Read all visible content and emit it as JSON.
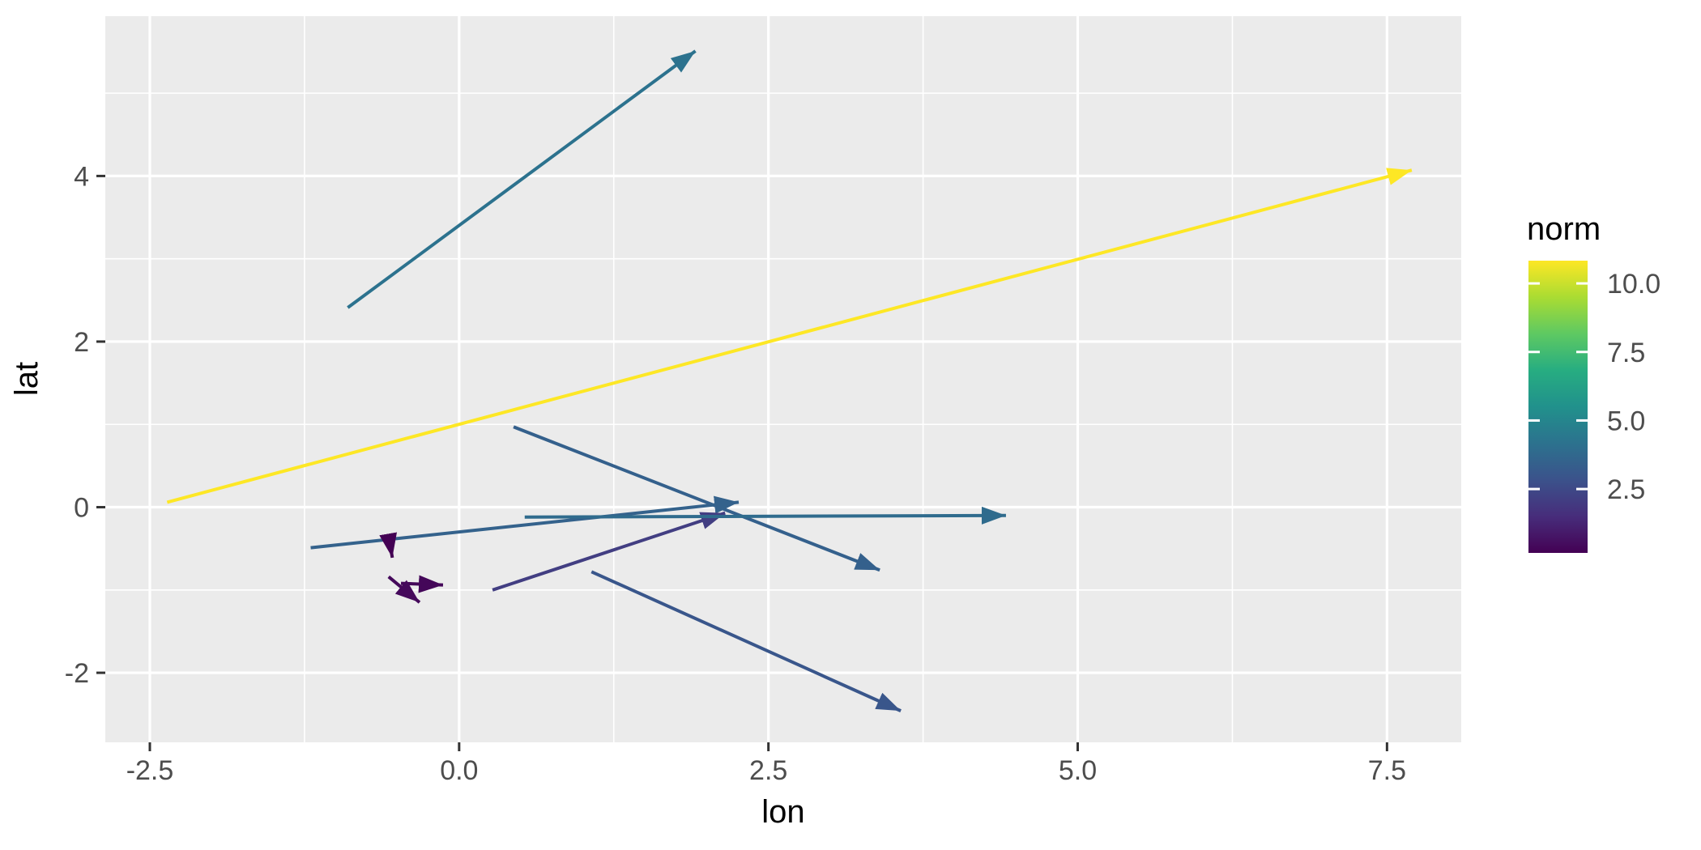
{
  "chart_data": {
    "type": "scatter",
    "subtype": "vector-field-arrows (ggplot2 geom_segment, viridis colour scale)",
    "title": "",
    "xlabel": "lon",
    "ylabel": "lat",
    "xlim": [
      -2.86,
      8.1
    ],
    "ylim": [
      -2.84,
      5.93
    ],
    "grid": "on",
    "panel_background": "#ebebeb",
    "gridline_color": "#ffffff",
    "tick_color": "#333333",
    "tick_label_color": "#4d4d4d",
    "x_major_ticks": [
      -2.5,
      0.0,
      2.5,
      5.0,
      7.5
    ],
    "x_tick_labels": [
      "-2.5",
      "0.0",
      "2.5",
      "5.0",
      "7.5"
    ],
    "x_minor_ticks": [
      -1.25,
      1.25,
      3.75,
      6.25
    ],
    "y_major_ticks": [
      -2,
      0,
      2,
      4
    ],
    "y_tick_labels": [
      "-2",
      "0",
      "2",
      "4"
    ],
    "y_minor_ticks": [
      -1,
      1,
      3,
      5
    ],
    "segments": [
      {
        "x": -0.9,
        "y": 2.41,
        "xend": 1.91,
        "yend": 5.51,
        "norm": 4.18
      },
      {
        "x": -2.36,
        "y": 0.06,
        "xend": 7.7,
        "yend": 4.07,
        "norm": 10.83
      },
      {
        "x": 0.44,
        "y": 0.97,
        "xend": 3.4,
        "yend": -0.76,
        "norm": 3.43
      },
      {
        "x": -1.2,
        "y": -0.49,
        "xend": 2.26,
        "yend": 0.06,
        "norm": 3.5
      },
      {
        "x": 0.27,
        "y": -1.0,
        "xend": 2.15,
        "yend": -0.07,
        "norm": 2.1
      },
      {
        "x": 0.53,
        "y": -0.12,
        "xend": 4.42,
        "yend": -0.1,
        "norm": 3.89
      },
      {
        "x": 1.07,
        "y": -0.78,
        "xend": 3.57,
        "yend": -2.46,
        "norm": 3.01
      },
      {
        "x": -0.56,
        "y": -0.44,
        "xend": -0.54,
        "yend": -0.61,
        "norm": 0.17
      },
      {
        "x": -0.47,
        "y": -0.92,
        "xend": -0.13,
        "yend": -0.94,
        "norm": 0.34
      },
      {
        "x": -0.57,
        "y": -0.84,
        "xend": -0.32,
        "yend": -1.15,
        "norm": 0.4
      }
    ],
    "legend": {
      "title": "norm",
      "position": "right",
      "ticks": [
        10.0,
        7.5,
        5.0,
        2.5
      ],
      "tick_labels": [
        "10.0",
        "7.5",
        "5.0",
        "2.5"
      ],
      "domain": [
        0.17,
        10.83
      ],
      "colormap": "viridis",
      "colormap_stops": [
        {
          "t": 0.0,
          "color": "#440154"
        },
        {
          "t": 0.125,
          "color": "#472d7b"
        },
        {
          "t": 0.25,
          "color": "#3b528b"
        },
        {
          "t": 0.375,
          "color": "#2c728e"
        },
        {
          "t": 0.5,
          "color": "#21918c"
        },
        {
          "t": 0.625,
          "color": "#27ad81"
        },
        {
          "t": 0.75,
          "color": "#5ec962"
        },
        {
          "t": 0.875,
          "color": "#aadc32"
        },
        {
          "t": 1.0,
          "color": "#fde725"
        }
      ]
    }
  }
}
